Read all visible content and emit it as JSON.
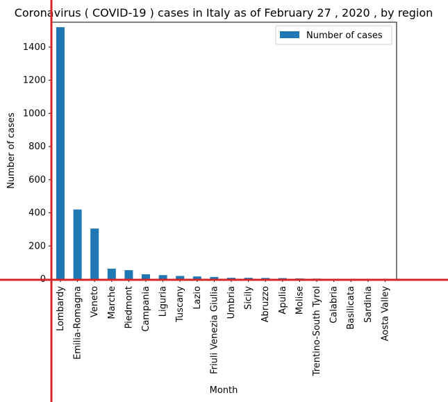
{
  "chart_data": {
    "type": "bar",
    "title": "Coronavirus ( COVID-19 ) cases in Italy as of February 27 , 2020 , by region",
    "xlabel": "Month",
    "ylabel": "Number of cases",
    "categories": [
      "Lombardy",
      "Emilia-Romagna",
      "Veneto",
      "Marche",
      "Piedmont",
      "Campania",
      "Liguria",
      "Tuscany",
      "Lazio",
      "Friuli Venezia Giulia",
      "Umbria",
      "Sicily",
      "Abruzzo",
      "Apulia",
      "Molise",
      "Trentino-South Tyrol",
      "Calabria",
      "Basilicata",
      "Sardinia",
      "Aosta Valley"
    ],
    "series": [
      {
        "name": "Number of cases",
        "values": [
          1520,
          420,
          305,
          63,
          54,
          29,
          24,
          19,
          16,
          13,
          8,
          8,
          7,
          6,
          4,
          3,
          2,
          2,
          2,
          0
        ],
        "color": "#1f77b4"
      }
    ],
    "ylim": [
      0,
      1550
    ],
    "yticks": [
      0,
      200,
      400,
      600,
      800,
      1000,
      1200,
      1400
    ],
    "legend_position": "top-right",
    "grid": false,
    "overlay_line_color": "#d62728"
  }
}
